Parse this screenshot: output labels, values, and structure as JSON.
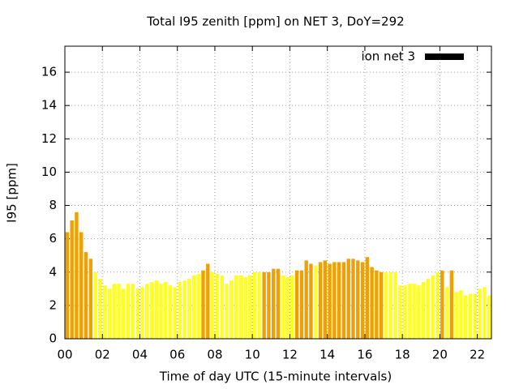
{
  "chart_data": {
    "type": "bar",
    "title": "Total I95 zenith [ppm] on NET 3, DoY=292",
    "x_label": "Time of day UTC (15-minute intervals)",
    "y_label": "I95 [ppm]",
    "bar_hours": 0.25,
    "values": [
      6.4,
      7.1,
      7.6,
      6.4,
      5.2,
      4.8,
      4.0,
      3.6,
      3.2,
      3.0,
      3.3,
      3.3,
      3.0,
      3.3,
      3.3,
      3.0,
      3.1,
      3.3,
      3.4,
      3.5,
      3.3,
      3.4,
      3.2,
      3.1,
      3.4,
      3.5,
      3.6,
      3.8,
      3.9,
      4.1,
      4.5,
      4.0,
      3.9,
      3.8,
      3.3,
      3.5,
      3.8,
      3.8,
      3.7,
      3.8,
      4.0,
      4.0,
      4.0,
      4.0,
      4.2,
      4.2,
      3.8,
      3.7,
      3.8,
      4.1,
      4.1,
      4.7,
      4.5,
      4.4,
      4.6,
      4.7,
      4.5,
      4.6,
      4.6,
      4.6,
      4.8,
      4.8,
      4.7,
      4.6,
      4.9,
      4.3,
      4.1,
      4.0,
      4.0,
      4.0,
      4.0,
      3.2,
      3.2,
      3.3,
      3.3,
      3.2,
      3.4,
      3.6,
      3.8,
      4.0,
      4.1,
      3.1,
      4.1,
      2.8,
      2.9,
      2.6,
      2.7,
      2.7,
      3.0,
      3.1,
      2.6
    ],
    "colors": [
      "#f0a000",
      "#f0a000",
      "#f0a000",
      "#f0a000",
      "#f0a000",
      "#f0a000",
      "#ffff20",
      "#ffff20",
      "#ffff20",
      "#ffff20",
      "#ffff20",
      "#ffff20",
      "#ffff20",
      "#ffff20",
      "#ffff20",
      "#ffff20",
      "#ffff20",
      "#ffff20",
      "#ffff20",
      "#ffff20",
      "#ffff20",
      "#ffff20",
      "#ffff20",
      "#ffff20",
      "#ffff20",
      "#ffff20",
      "#ffff20",
      "#ffff20",
      "#ffff20",
      "#f0a000",
      "#f0a000",
      "#ffff20",
      "#ffff20",
      "#ffff20",
      "#ffff20",
      "#ffff20",
      "#ffff20",
      "#ffff20",
      "#ffff20",
      "#ffff20",
      "#ffff20",
      "#ffff20",
      "#f0a000",
      "#f0a000",
      "#f0a000",
      "#f0a000",
      "#ffff20",
      "#ffff20",
      "#ffff20",
      "#f0a000",
      "#f0a000",
      "#f0a000",
      "#f0a000",
      "#ffff20",
      "#f0a000",
      "#f0a000",
      "#f0a000",
      "#f0a000",
      "#f0a000",
      "#f0a000",
      "#f0a000",
      "#f0a000",
      "#f0a000",
      "#f0a000",
      "#f0a000",
      "#f0a000",
      "#f0a000",
      "#f0a000",
      "#ffff20",
      "#ffff20",
      "#ffff20",
      "#ffff20",
      "#ffff20",
      "#ffff20",
      "#ffff20",
      "#ffff20",
      "#ffff20",
      "#ffff20",
      "#ffff20",
      "#ffff20",
      "#f0a000",
      "#ffff20",
      "#f0a000",
      "#ffff20",
      "#ffff20",
      "#ffff20",
      "#ffff20",
      "#ffff20",
      "#ffff20",
      "#ffff20",
      "#ffff20"
    ],
    "legend": {
      "name": "ion net 3",
      "color": "#000000",
      "position": "top-right"
    },
    "xlim": [
      0,
      22.75
    ],
    "xticks": [
      {
        "value": 0,
        "label": "00"
      },
      {
        "value": 2,
        "label": "02"
      },
      {
        "value": 4,
        "label": "04"
      },
      {
        "value": 6,
        "label": "06"
      },
      {
        "value": 8,
        "label": "08"
      },
      10,
      12,
      14,
      16,
      18,
      20,
      22
    ],
    "ylim": [
      0,
      17.56
    ],
    "yticks": [
      0,
      2,
      4,
      6,
      8,
      10,
      12,
      14,
      16
    ],
    "grid": true
  }
}
